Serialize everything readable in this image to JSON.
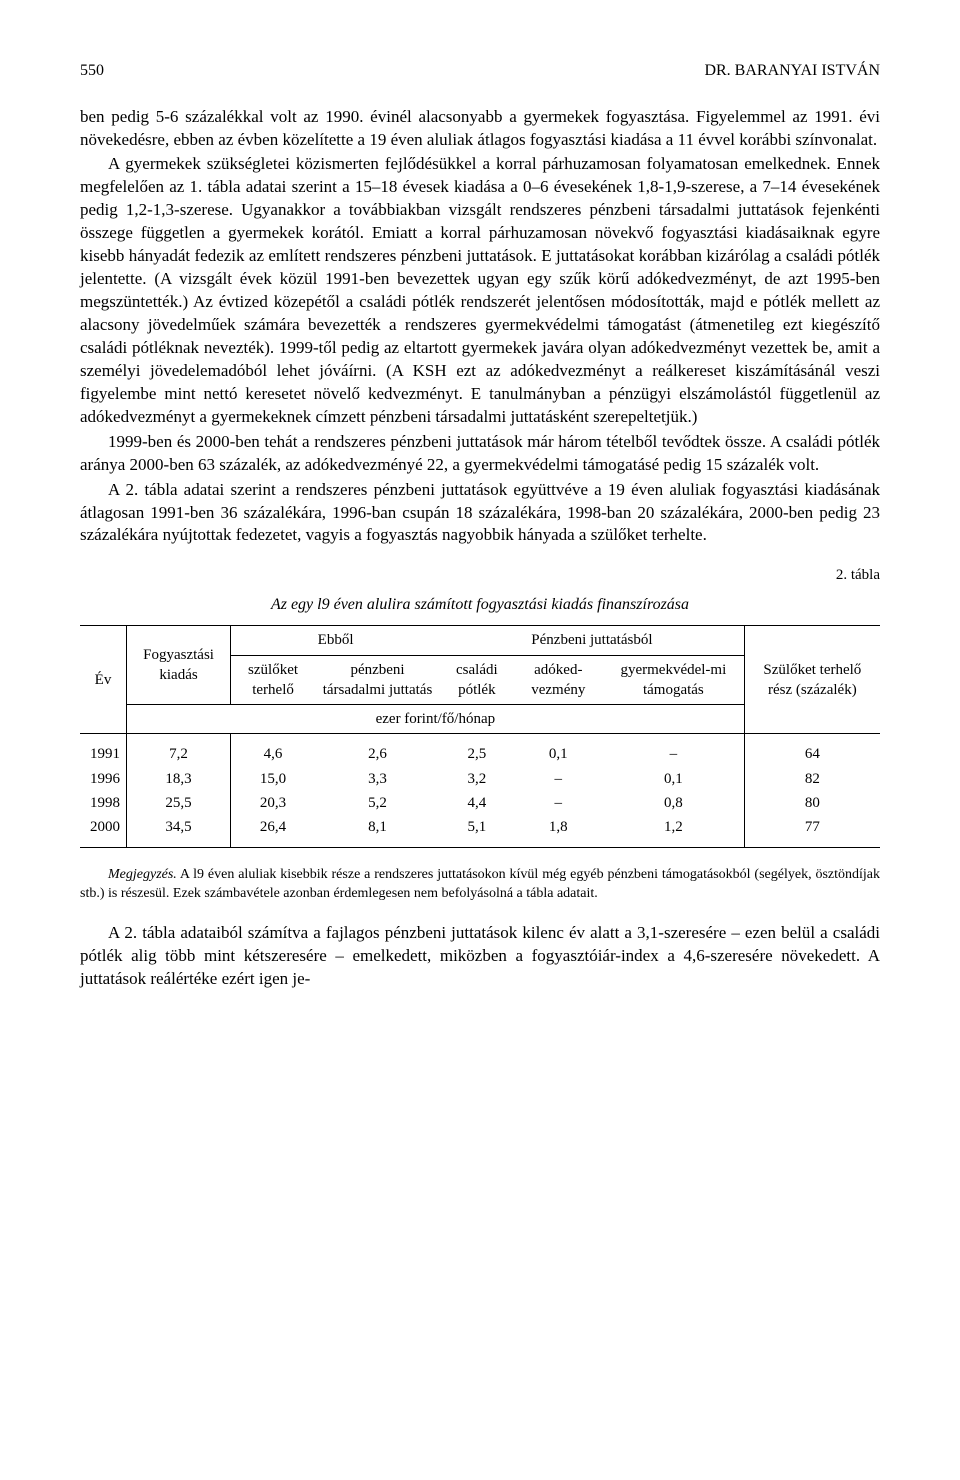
{
  "header": {
    "page_no": "550",
    "author": "DR. BARANYAI ISTVÁN"
  },
  "paras": {
    "p1": "ben pedig 5-6 százalékkal volt az 1990. évinél alacsonyabb a gyermekek fogyasztása. Figyelemmel az 1991. évi növekedésre, ebben az évben közelítette a 19 éven aluliak átlagos fogyasztási kiadása a 11 évvel korábbi színvonalat.",
    "p2": "A gyermekek szükségletei közismerten fejlődésükkel a korral párhuzamosan folyamatosan emelkednek. Ennek megfelelően az 1. tábla adatai szerint a 15–18 évesek kiadása a 0–6 évesekének 1,8-1,9-szerese, a 7–14 évesekének pedig 1,2-1,3-szerese. Ugyanakkor a továbbiakban vizsgált rendszeres pénzbeni társadalmi juttatások fejenkénti összege független a gyermekek korától. Emiatt a korral párhuzamosan növekvő fogyasztási kiadásaiknak egyre kisebb hányadát fedezik az említett rendszeres pénzbeni juttatások. E juttatásokat korábban kizárólag a családi pótlék jelentette. (A vizsgált évek közül 1991-ben bevezettek ugyan egy szűk körű adókedvezményt, de azt 1995-ben megszüntették.) Az évtized közepétől a családi pótlék rendszerét jelentősen módosították, majd e pótlék mellett az alacsony jövedelműek számára bevezették a rendszeres gyermekvédelmi támogatást (átmenetileg ezt kiegészítő családi pótléknak nevezték). 1999-től pedig az eltartott gyermekek javára olyan adókedvezményt vezettek be, amit a személyi jövedelemadóból lehet jóváírni. (A KSH ezt az adókedvezményt a reálkereset kiszámításánál veszi figyelembe mint nettó keresetet növelő kedvezményt. E tanulmányban a pénzügyi elszámolástól függetlenül az adókedvezményt a gyermekeknek címzett pénzbeni társadalmi juttatásként szerepeltetjük.)",
    "p3": "1999-ben és 2000-ben tehát a rendszeres pénzbeni juttatások már három tételből tevődtek össze. A családi pótlék aránya 2000-ben 63 százalék, az adókedvezményé 22, a gyermekvédelmi támogatásé pedig 15 százalék volt.",
    "p4": "A 2. tábla adatai szerint a rendszeres pénzbeni juttatások együttvéve a 19 éven aluliak fogyasztási kiadásának átlagosan 1991-ben 36 százalékára, 1996-ban csupán 18 százalékára, 1998-ban 20 százalékára, 2000-ben pedig 23 százalékára nyújtottak fedezetet, vagyis a fogyasztás nagyobbik hányada a szülőket terhelte.",
    "p5": "A 2. tábla adataiból számítva a fajlagos pénzbeni juttatások kilenc év alatt a 3,1-szeresére – ezen belül a családi pótlék alig több mint kétszeresére – emelkedett, miközben a fogyasztóiár-index a 4,6-szeresére növekedett. A juttatások reálértéke ezért igen je-"
  },
  "table": {
    "label": "2. tábla",
    "title": "Az egy l9 éven alulira számított fogyasztási kiadás finanszírozása",
    "col_year": "Év",
    "col_fogyasztasi": "Fogyasztási kiadás",
    "group_ebbol": "Ebből",
    "col_szuloket_terhelo": "szülőket terhelő",
    "col_penzbeni": "pénzbeni társadalmi juttatás",
    "group_penzbeni_juttatasbol": "Pénzbeni juttatásból",
    "col_csp": "családi pótlék",
    "col_adokedv": "adóked-vezmény",
    "col_gyermekved": "gyermekvédel-mi támogatás",
    "col_szulo_resz": "Szülőket terhelő rész (százalék)",
    "unit": "ezer forint/fő/hónap",
    "rows": [
      {
        "year": "1991",
        "fogy": "7,2",
        "szulo": "4,6",
        "penz": "2,6",
        "csp": "2,5",
        "adok": "0,1",
        "gyv": "–",
        "szr": "64"
      },
      {
        "year": "1996",
        "fogy": "18,3",
        "szulo": "15,0",
        "penz": "3,3",
        "csp": "3,2",
        "adok": "–",
        "gyv": "0,1",
        "szr": "82"
      },
      {
        "year": "1998",
        "fogy": "25,5",
        "szulo": "20,3",
        "penz": "5,2",
        "csp": "4,4",
        "adok": "–",
        "gyv": "0,8",
        "szr": "80"
      },
      {
        "year": "2000",
        "fogy": "34,5",
        "szulo": "26,4",
        "penz": "8,1",
        "csp": "5,1",
        "adok": "1,8",
        "gyv": "1,2",
        "szr": "77"
      }
    ]
  },
  "note_label": "Megjegyzés.",
  "note": " A l9 éven aluliak kisebbik része a rendszeres juttatásokon kívül még egyéb pénzbeni támogatásokból (segélyek, ösztöndíjak stb.) is részesül. Ezek számbavétele azonban érdemlegesen nem befolyásolná a tábla adatait."
}
